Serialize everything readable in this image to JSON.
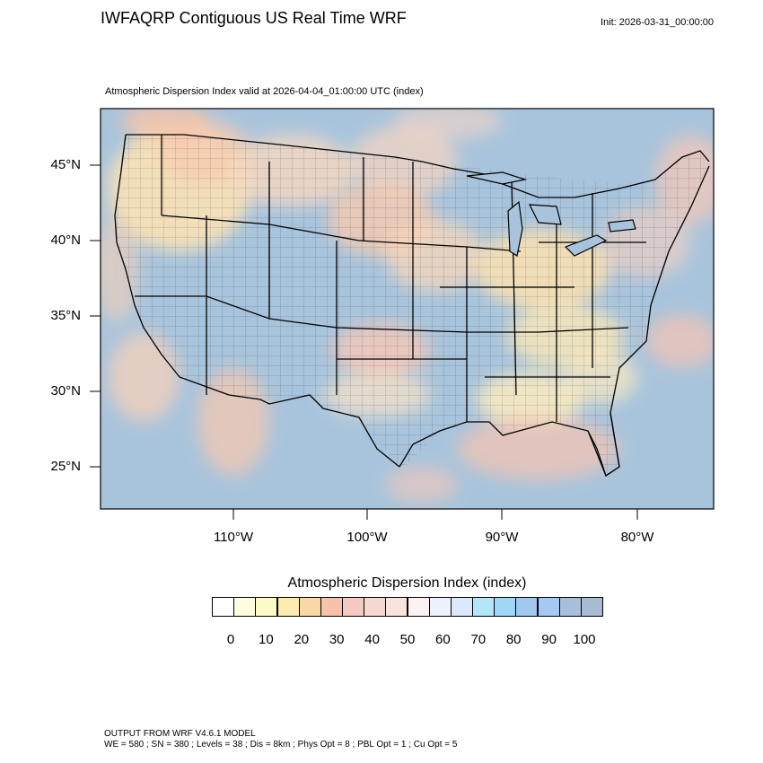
{
  "header": {
    "title": "IWFAQRP Contiguous US Real Time WRF",
    "init": "Init: 2026-03-31_00:00:00",
    "subtitle": "Atmospheric Dispersion Index valid at 2026-04-04_01:00:00 UTC   (index)"
  },
  "map": {
    "lat_labels": [
      "45°N",
      "40°N",
      "35°N",
      "30°N",
      "25°N"
    ],
    "lon_labels": [
      "110°W",
      "100°W",
      "90°W",
      "80°W"
    ],
    "colors": {
      "ocean_high": "#a8c4dc",
      "land_low": "#fde9b8",
      "land_mid": "#fbd3c4",
      "boundary": "#000000"
    }
  },
  "legend": {
    "title": "Atmospheric Dispersion Index  (index)",
    "tick_labels": [
      "0",
      "10",
      "20",
      "30",
      "40",
      "50",
      "60",
      "70",
      "80",
      "90",
      "100"
    ],
    "colors": [
      "#ffffff",
      "#fefde0",
      "#fcfac6",
      "#fcecb0",
      "#fad8a4",
      "#f7c1aa",
      "#f4cbc3",
      "#f5d8d0",
      "#f8e3dc",
      "#fdf2f1",
      "#eef0fd",
      "#dce8fb",
      "#b4e6fb",
      "#9fd8f6",
      "#a0c8f0",
      "#a6c8f4",
      "#a8bfdc",
      "#a7bcd3"
    ]
  },
  "footer": {
    "line1": "OUTPUT FROM WRF V4.6.1 MODEL",
    "line2": "WE = 580 ; SN = 380 ; Levels = 38 ; Dis = 8km ; Phys Opt = 8 ; PBL Opt = 1 ; Cu Opt = 5"
  }
}
